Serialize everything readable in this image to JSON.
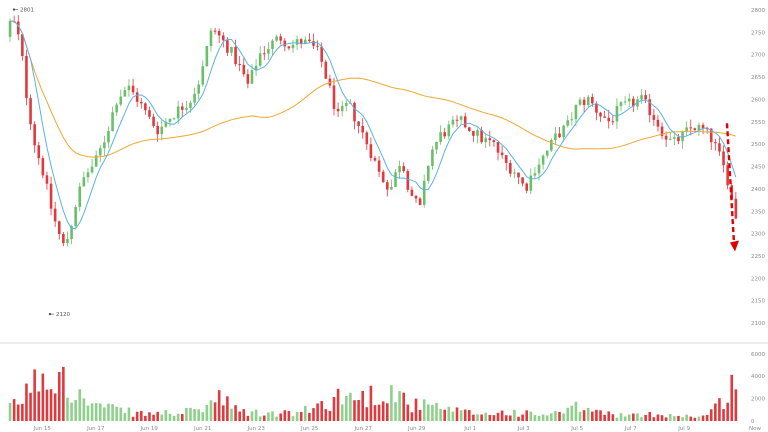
{
  "chart_data": {
    "type": "candlestick",
    "title": "",
    "xlabel": "",
    "ylabel": "",
    "ylim": [
      2080,
      2800
    ],
    "volume_ylim": [
      0,
      6700
    ],
    "x_ticks": [
      "Jun 15",
      "Jun 17",
      "Jun 19",
      "Jun 21",
      "Jun 23",
      "Jun 25",
      "Jun 27",
      "Jun 29",
      "Jul 1",
      "Jul 3",
      "Jul 5",
      "Jul 7",
      "Jul 9"
    ],
    "y_ticks": [
      "2800",
      "2750",
      "2700",
      "2650",
      "2600",
      "2550",
      "2500",
      "2450",
      "2400",
      "2350",
      "2300",
      "2250",
      "2200",
      "2150",
      "2100"
    ],
    "volume_ticks": [
      "6000",
      "4000",
      "2000",
      "0"
    ],
    "last_label": "Now",
    "annotations": [
      {
        "label": "2801",
        "date_index": 0.15,
        "value": 2801,
        "role": "high"
      },
      {
        "label": "2120",
        "date_index": 1.1,
        "value": 2120,
        "role": "low"
      }
    ],
    "price_path": [
      {
        "d": 0.0,
        "v": 2740
      },
      {
        "d": 0.1,
        "v": 2780
      },
      {
        "d": 0.2,
        "v": 2760
      },
      {
        "d": 0.3,
        "v": 2700
      },
      {
        "d": 0.4,
        "v": 2600
      },
      {
        "d": 0.55,
        "v": 2500
      },
      {
        "d": 0.7,
        "v": 2440
      },
      {
        "d": 0.85,
        "v": 2360
      },
      {
        "d": 1.0,
        "v": 2300
      },
      {
        "d": 1.1,
        "v": 2270
      },
      {
        "d": 1.2,
        "v": 2300
      },
      {
        "d": 1.35,
        "v": 2380
      },
      {
        "d": 1.5,
        "v": 2430
      },
      {
        "d": 1.7,
        "v": 2460
      },
      {
        "d": 1.9,
        "v": 2520
      },
      {
        "d": 2.1,
        "v": 2600
      },
      {
        "d": 2.3,
        "v": 2630
      },
      {
        "d": 2.5,
        "v": 2600
      },
      {
        "d": 2.7,
        "v": 2560
      },
      {
        "d": 2.9,
        "v": 2530
      },
      {
        "d": 3.1,
        "v": 2560
      },
      {
        "d": 3.3,
        "v": 2580
      },
      {
        "d": 3.5,
        "v": 2600
      },
      {
        "d": 3.7,
        "v": 2650
      },
      {
        "d": 3.9,
        "v": 2760
      },
      {
        "d": 4.05,
        "v": 2740
      },
      {
        "d": 4.25,
        "v": 2710
      },
      {
        "d": 4.4,
        "v": 2680
      },
      {
        "d": 4.6,
        "v": 2630
      },
      {
        "d": 4.8,
        "v": 2700
      },
      {
        "d": 5.0,
        "v": 2720
      },
      {
        "d": 5.2,
        "v": 2740
      },
      {
        "d": 5.4,
        "v": 2720
      },
      {
        "d": 5.6,
        "v": 2730
      },
      {
        "d": 5.8,
        "v": 2720
      },
      {
        "d": 5.95,
        "v": 2700
      },
      {
        "d": 6.1,
        "v": 2640
      },
      {
        "d": 6.3,
        "v": 2560
      },
      {
        "d": 6.5,
        "v": 2590
      },
      {
        "d": 6.7,
        "v": 2540
      },
      {
        "d": 6.9,
        "v": 2490
      },
      {
        "d": 7.1,
        "v": 2430
      },
      {
        "d": 7.3,
        "v": 2400
      },
      {
        "d": 7.5,
        "v": 2470
      },
      {
        "d": 7.65,
        "v": 2400
      },
      {
        "d": 7.85,
        "v": 2350
      },
      {
        "d": 8.05,
        "v": 2480
      },
      {
        "d": 8.25,
        "v": 2520
      },
      {
        "d": 8.45,
        "v": 2540
      },
      {
        "d": 8.65,
        "v": 2550
      },
      {
        "d": 8.85,
        "v": 2530
      },
      {
        "d": 9.05,
        "v": 2510
      },
      {
        "d": 9.25,
        "v": 2500
      },
      {
        "d": 9.45,
        "v": 2460
      },
      {
        "d": 9.65,
        "v": 2440
      },
      {
        "d": 9.85,
        "v": 2400
      },
      {
        "d": 10.05,
        "v": 2450
      },
      {
        "d": 10.25,
        "v": 2480
      },
      {
        "d": 10.45,
        "v": 2520
      },
      {
        "d": 10.65,
        "v": 2540
      },
      {
        "d": 10.85,
        "v": 2590
      },
      {
        "d": 11.05,
        "v": 2600
      },
      {
        "d": 11.25,
        "v": 2570
      },
      {
        "d": 11.45,
        "v": 2550
      },
      {
        "d": 11.65,
        "v": 2580
      },
      {
        "d": 11.85,
        "v": 2590
      },
      {
        "d": 12.05,
        "v": 2600
      },
      {
        "d": 12.25,
        "v": 2570
      },
      {
        "d": 12.45,
        "v": 2530
      },
      {
        "d": 12.65,
        "v": 2500
      },
      {
        "d": 12.85,
        "v": 2520
      },
      {
        "d": 13.05,
        "v": 2540
      },
      {
        "d": 13.25,
        "v": 2530
      },
      {
        "d": 13.4,
        "v": 2510
      },
      {
        "d": 13.55,
        "v": 2470
      },
      {
        "d": 13.7,
        "v": 2420
      },
      {
        "d": 13.8,
        "v": 2360
      },
      {
        "d": 13.85,
        "v": 2340
      }
    ],
    "volume_path": [
      {
        "d": 0.0,
        "v": 1200
      },
      {
        "d": 0.25,
        "v": 2400
      },
      {
        "d": 0.45,
        "v": 3600
      },
      {
        "d": 0.6,
        "v": 4800
      },
      {
        "d": 0.8,
        "v": 3800
      },
      {
        "d": 1.0,
        "v": 6200
      },
      {
        "d": 1.1,
        "v": 4200
      },
      {
        "d": 1.3,
        "v": 2400
      },
      {
        "d": 1.6,
        "v": 1600
      },
      {
        "d": 2.0,
        "v": 1100
      },
      {
        "d": 2.5,
        "v": 700
      },
      {
        "d": 3.0,
        "v": 800
      },
      {
        "d": 3.5,
        "v": 900
      },
      {
        "d": 3.8,
        "v": 1800
      },
      {
        "d": 4.0,
        "v": 2200
      },
      {
        "d": 4.3,
        "v": 1000
      },
      {
        "d": 4.8,
        "v": 700
      },
      {
        "d": 5.5,
        "v": 800
      },
      {
        "d": 6.0,
        "v": 1800
      },
      {
        "d": 6.3,
        "v": 2600
      },
      {
        "d": 6.6,
        "v": 2200
      },
      {
        "d": 7.0,
        "v": 2800
      },
      {
        "d": 7.3,
        "v": 3000
      },
      {
        "d": 7.6,
        "v": 1600
      },
      {
        "d": 8.0,
        "v": 1400
      },
      {
        "d": 8.5,
        "v": 900
      },
      {
        "d": 9.0,
        "v": 700
      },
      {
        "d": 9.5,
        "v": 900
      },
      {
        "d": 10.0,
        "v": 600
      },
      {
        "d": 10.5,
        "v": 800
      },
      {
        "d": 10.8,
        "v": 1400
      },
      {
        "d": 11.2,
        "v": 800
      },
      {
        "d": 11.8,
        "v": 500
      },
      {
        "d": 12.3,
        "v": 700
      },
      {
        "d": 12.8,
        "v": 500
      },
      {
        "d": 13.2,
        "v": 500
      },
      {
        "d": 13.5,
        "v": 1800
      },
      {
        "d": 13.65,
        "v": 3800
      },
      {
        "d": 13.85,
        "v": 2600
      }
    ],
    "num_candles": 178,
    "ma_fast_period": 6,
    "ma_slow_period": 20,
    "trend_arrow": {
      "from_value": 2540,
      "to_value": 2260,
      "direction": "down"
    },
    "colors": {
      "up": "#6abf69",
      "down": "#e0393e",
      "ma_fast": "#5ab4e0",
      "ma_slow": "#f0a830",
      "arrow": "#e00000",
      "tick_text": "#8a8a8a",
      "divider": "#d8d8d8"
    },
    "grid": false
  }
}
